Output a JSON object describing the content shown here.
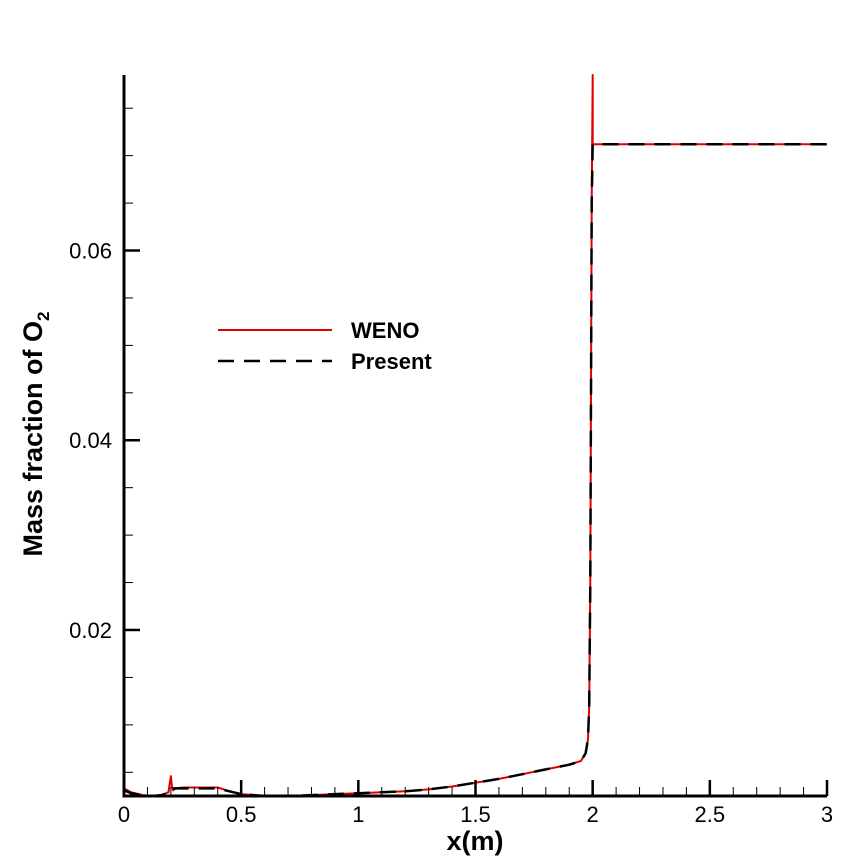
{
  "chart_data": {
    "type": "line",
    "title": "",
    "xlabel": "x(m)",
    "ylabel": {
      "text": "Mass fraction of O",
      "subscript": "2"
    },
    "xlim": [
      0,
      3
    ],
    "ylim": [
      0.0025,
      0.0785
    ],
    "xticks": [
      {
        "value": 0,
        "label": "0"
      },
      {
        "value": 0.5,
        "label": "0.5"
      },
      {
        "value": 1,
        "label": "1"
      },
      {
        "value": 1.5,
        "label": "1.5"
      },
      {
        "value": 2,
        "label": "2"
      },
      {
        "value": 2.5,
        "label": "2.5"
      },
      {
        "value": 3,
        "label": "3"
      }
    ],
    "yticks": [
      {
        "value": 0.02,
        "label": "0.02"
      },
      {
        "value": 0.04,
        "label": "0.04"
      },
      {
        "value": 0.06,
        "label": "0.06"
      }
    ],
    "yminor": [
      0.005,
      0.01,
      0.015,
      0.025,
      0.03,
      0.035,
      0.045,
      0.05,
      0.055,
      0.065,
      0.07,
      0.075
    ],
    "xminor": [
      0.1,
      0.2,
      0.3,
      0.4,
      0.6,
      0.7,
      0.8,
      0.9,
      1.1,
      1.2,
      1.3,
      1.4,
      1.6,
      1.7,
      1.8,
      1.9,
      2.1,
      2.2,
      2.3,
      2.4,
      2.6,
      2.7,
      2.8,
      2.9
    ],
    "grid": false,
    "legend_position": "upper-left",
    "series": [
      {
        "name": "WENO",
        "color": "#e00000",
        "style": "solid",
        "x": [
          0,
          0.03,
          0.08,
          0.12,
          0.16,
          0.19,
          0.195,
          0.2,
          0.205,
          0.21,
          0.22,
          0.25,
          0.3,
          0.35,
          0.38,
          0.4,
          0.45,
          0.5,
          0.6,
          0.7,
          0.8,
          0.9,
          1.0,
          1.1,
          1.2,
          1.3,
          1.4,
          1.5,
          1.6,
          1.7,
          1.8,
          1.9,
          1.95,
          1.97,
          1.98,
          1.985,
          1.99,
          1.993,
          1.996,
          2.0,
          2.0,
          2.005,
          2.01,
          3.0
        ],
        "y": [
          0.0033,
          0.0029,
          0.0026,
          0.0025,
          0.0026,
          0.0029,
          0.0038,
          0.0046,
          0.0034,
          0.0031,
          0.0033,
          0.0034,
          0.0034,
          0.0034,
          0.0034,
          0.0034,
          0.003,
          0.0027,
          0.0025,
          0.0025,
          0.0026,
          0.0027,
          0.0028,
          0.0029,
          0.003,
          0.0032,
          0.0035,
          0.0039,
          0.0043,
          0.0048,
          0.0053,
          0.0058,
          0.0062,
          0.007,
          0.0085,
          0.012,
          0.025,
          0.045,
          0.065,
          0.0785,
          0.0712,
          0.0712,
          0.0712,
          0.0712
        ]
      },
      {
        "name": "Present",
        "color": "#000000",
        "style": "dashed",
        "x": [
          0,
          0.03,
          0.08,
          0.12,
          0.16,
          0.19,
          0.2,
          0.21,
          0.22,
          0.25,
          0.3,
          0.35,
          0.4,
          0.45,
          0.5,
          0.6,
          0.7,
          0.8,
          0.9,
          1.0,
          1.1,
          1.2,
          1.3,
          1.4,
          1.5,
          1.6,
          1.7,
          1.8,
          1.9,
          1.95,
          1.97,
          1.98,
          1.985,
          1.99,
          1.993,
          1.996,
          2.0,
          2.01,
          3.0
        ],
        "y": [
          0.0031,
          0.0028,
          0.0026,
          0.0025,
          0.0026,
          0.0028,
          0.0032,
          0.0033,
          0.0033,
          0.0033,
          0.0033,
          0.0033,
          0.0033,
          0.003,
          0.0027,
          0.0025,
          0.0025,
          0.0026,
          0.0027,
          0.0028,
          0.0029,
          0.003,
          0.0032,
          0.0035,
          0.0039,
          0.0043,
          0.0048,
          0.0053,
          0.0058,
          0.0062,
          0.007,
          0.0085,
          0.012,
          0.025,
          0.045,
          0.065,
          0.0712,
          0.0712,
          0.0712
        ]
      }
    ]
  }
}
